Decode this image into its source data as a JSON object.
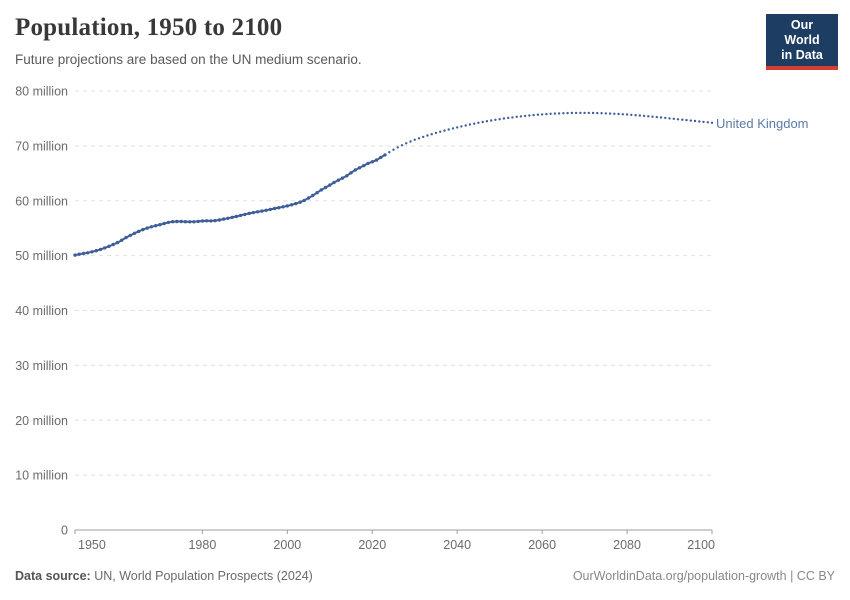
{
  "header": {
    "title": "Population, 1950 to 2100",
    "subtitle": "Future projections are based on the UN medium scenario.",
    "logo": {
      "line1": "Our World",
      "line2": "in Data",
      "bg_color": "#1d3d63",
      "accent_color": "#d63e32",
      "text_color": "#ffffff"
    }
  },
  "chart_data": {
    "type": "line",
    "title": "Population, 1950 to 2100",
    "entity_label": "United Kingdom",
    "unit": "million people",
    "xlim": [
      1950,
      2100
    ],
    "ylim": [
      0,
      80
    ],
    "grid": true,
    "legend_position": "end-of-line label at right",
    "x_ticks": [
      1950,
      1980,
      2000,
      2020,
      2040,
      2060,
      2080,
      2100
    ],
    "y_ticks": [
      {
        "value": 0,
        "label": "0"
      },
      {
        "value": 10,
        "label": "10 million"
      },
      {
        "value": 20,
        "label": "20 million"
      },
      {
        "value": 30,
        "label": "30 million"
      },
      {
        "value": 40,
        "label": "40 million"
      },
      {
        "value": 50,
        "label": "50 million"
      },
      {
        "value": 60,
        "label": "60 million"
      },
      {
        "value": 70,
        "label": "70 million"
      },
      {
        "value": 80,
        "label": "80 million"
      }
    ],
    "colors": {
      "line": "#3f5f99",
      "entity_label": "#5b7ba8",
      "grid": "#e0e0e0",
      "axis": "#9e9e9e",
      "tick_text": "#6b6b6b"
    },
    "series": [
      {
        "name": "United Kingdom",
        "segment": "historical estimates",
        "style": "solid",
        "years": [
          1950,
          1951,
          1952,
          1953,
          1954,
          1955,
          1956,
          1957,
          1958,
          1959,
          1960,
          1961,
          1962,
          1963,
          1964,
          1965,
          1966,
          1967,
          1968,
          1969,
          1970,
          1971,
          1972,
          1973,
          1974,
          1975,
          1976,
          1977,
          1978,
          1979,
          1980,
          1981,
          1982,
          1983,
          1984,
          1985,
          1986,
          1987,
          1988,
          1989,
          1990,
          1991,
          1992,
          1993,
          1994,
          1995,
          1996,
          1997,
          1998,
          1999,
          2000,
          2001,
          2002,
          2003,
          2004,
          2005,
          2006,
          2007,
          2008,
          2009,
          2010,
          2011,
          2012,
          2013,
          2014,
          2015,
          2016,
          2017,
          2018,
          2019,
          2020,
          2021,
          2022,
          2023
        ],
        "values": [
          50.1,
          50.26,
          50.39,
          50.52,
          50.69,
          50.9,
          51.14,
          51.41,
          51.7,
          52.02,
          52.37,
          52.81,
          53.29,
          53.69,
          54.07,
          54.42,
          54.74,
          55.02,
          55.26,
          55.46,
          55.63,
          55.86,
          56.05,
          56.19,
          56.22,
          56.21,
          56.19,
          56.17,
          56.17,
          56.23,
          56.31,
          56.35,
          56.33,
          56.38,
          56.49,
          56.65,
          56.8,
          56.96,
          57.13,
          57.33,
          57.52,
          57.69,
          57.84,
          57.98,
          58.12,
          58.26,
          58.42,
          58.58,
          58.74,
          58.9,
          59.07,
          59.27,
          59.48,
          59.73,
          60.07,
          60.5,
          60.96,
          61.46,
          61.97,
          62.42,
          62.85,
          63.32,
          63.74,
          64.13,
          64.55,
          65.1,
          65.6,
          66.0,
          66.4,
          66.8,
          67.1,
          67.4,
          67.9,
          68.35
        ]
      },
      {
        "name": "United Kingdom",
        "segment": "UN medium projection",
        "style": "dotted",
        "years": [
          2024,
          2025,
          2026,
          2027,
          2028,
          2029,
          2030,
          2031,
          2032,
          2033,
          2034,
          2035,
          2036,
          2037,
          2038,
          2039,
          2040,
          2041,
          2042,
          2043,
          2044,
          2045,
          2046,
          2047,
          2048,
          2049,
          2050,
          2051,
          2052,
          2053,
          2054,
          2055,
          2056,
          2057,
          2058,
          2059,
          2060,
          2061,
          2062,
          2063,
          2064,
          2065,
          2066,
          2067,
          2068,
          2069,
          2070,
          2071,
          2072,
          2073,
          2074,
          2075,
          2076,
          2077,
          2078,
          2079,
          2080,
          2081,
          2082,
          2083,
          2084,
          2085,
          2086,
          2087,
          2088,
          2089,
          2090,
          2091,
          2092,
          2093,
          2094,
          2095,
          2096,
          2097,
          2098,
          2099,
          2100
        ],
        "values": [
          68.85,
          69.3,
          69.72,
          70.11,
          70.47,
          70.8,
          71.1,
          71.38,
          71.64,
          71.89,
          72.13,
          72.36,
          72.58,
          72.79,
          72.99,
          73.18,
          73.37,
          73.55,
          73.72,
          73.89,
          74.05,
          74.2,
          74.35,
          74.49,
          74.62,
          74.75,
          74.87,
          74.98,
          75.09,
          75.19,
          75.29,
          75.38,
          75.46,
          75.54,
          75.61,
          75.68,
          75.74,
          75.79,
          75.84,
          75.88,
          75.92,
          75.95,
          75.97,
          75.99,
          76.0,
          76.01,
          76.01,
          76.0,
          75.99,
          75.97,
          75.95,
          75.92,
          75.89,
          75.85,
          75.81,
          75.76,
          75.71,
          75.65,
          75.59,
          75.53,
          75.46,
          75.39,
          75.32,
          75.25,
          75.17,
          75.09,
          75.01,
          74.93,
          74.85,
          74.77,
          74.69,
          74.61,
          74.53,
          74.45,
          74.37,
          74.29,
          74.21
        ]
      }
    ]
  },
  "footer": {
    "source_label": "Data source:",
    "source_text": "UN, World Population Prospects (2024)",
    "credit": "OurWorldinData.org/population-growth | CC BY"
  }
}
